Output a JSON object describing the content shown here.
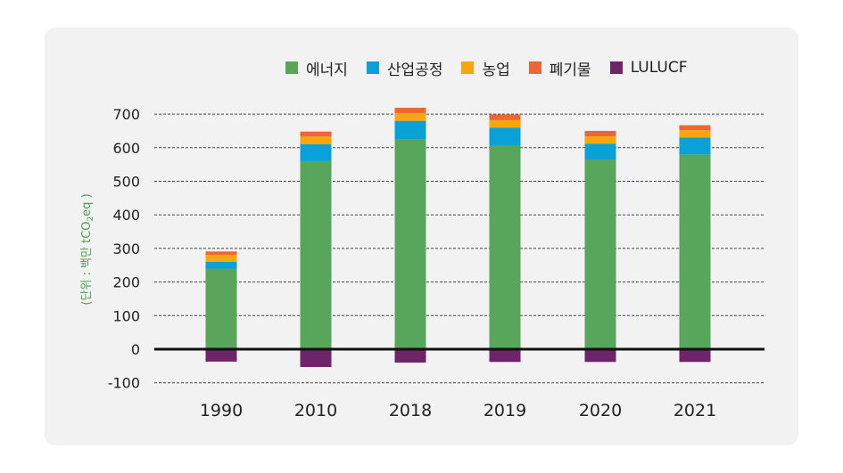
{
  "chart_data": {
    "type": "bar",
    "stacked": true,
    "ylabel": "(단위 : 백만 tCO2eq )",
    "ylabel_parts": {
      "main": "(단위 : 백만 tCO",
      "sub": "2",
      "tail": "eq )"
    },
    "categories": [
      "1990",
      "2010",
      "2018",
      "2019",
      "2020",
      "2021"
    ],
    "ylim": [
      -100,
      700
    ],
    "yticks": [
      700,
      600,
      500,
      400,
      300,
      200,
      100,
      0,
      -100
    ],
    "grid": true,
    "legend_position": "top-right",
    "series": [
      {
        "name": "에너지",
        "color": "#57a65b",
        "values": [
          240,
          560,
          625,
          605,
          565,
          580
        ]
      },
      {
        "name": "산업공정",
        "color": "#0aa0d8",
        "values": [
          20,
          50,
          55,
          55,
          47,
          50
        ]
      },
      {
        "name": "농업",
        "color": "#f5a70e",
        "values": [
          21,
          23,
          23,
          22,
          22,
          22
        ]
      },
      {
        "name": "폐기물",
        "color": "#ee6633",
        "values": [
          10,
          15,
          16,
          17,
          16,
          15
        ]
      },
      {
        "name": "LULUCF",
        "color": "#6e2468",
        "values": [
          -37,
          -53,
          -40,
          -38,
          -38,
          -38
        ]
      }
    ]
  }
}
